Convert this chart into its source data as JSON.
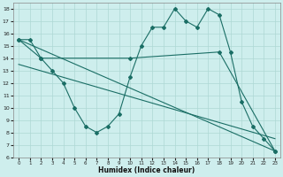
{
  "xlabel": "Humidex (Indice chaleur)",
  "xlim": [
    -0.5,
    23.5
  ],
  "ylim": [
    6,
    18.5
  ],
  "yticks": [
    6,
    7,
    8,
    9,
    10,
    11,
    12,
    13,
    14,
    15,
    16,
    17,
    18
  ],
  "xticks": [
    0,
    1,
    2,
    3,
    4,
    5,
    6,
    7,
    8,
    9,
    10,
    11,
    12,
    13,
    14,
    15,
    16,
    17,
    18,
    19,
    20,
    21,
    22,
    23
  ],
  "bg_color": "#ceeeed",
  "grid_color": "#aed8d4",
  "line_color": "#1a6e65",
  "line1_x": [
    0,
    1,
    2,
    3,
    4,
    5,
    6,
    7,
    8,
    9,
    10,
    11,
    12,
    13,
    14,
    15,
    16,
    17,
    18,
    19,
    20,
    21,
    22,
    23
  ],
  "line1_y": [
    15.5,
    15.5,
    14.0,
    13.0,
    12.0,
    10.0,
    8.5,
    8.0,
    8.5,
    9.5,
    12.5,
    15.0,
    16.5,
    16.5,
    18.0,
    17.0,
    16.5,
    18.0,
    17.5,
    14.5,
    10.5,
    8.5,
    7.5,
    6.5
  ],
  "line2_x": [
    0,
    2,
    10,
    18,
    23
  ],
  "line2_y": [
    15.5,
    14.0,
    14.0,
    14.5,
    6.5
  ],
  "line3_x": [
    0,
    23
  ],
  "line3_y": [
    15.5,
    6.5
  ],
  "line4_x": [
    0,
    23
  ],
  "line4_y": [
    13.5,
    7.5
  ]
}
